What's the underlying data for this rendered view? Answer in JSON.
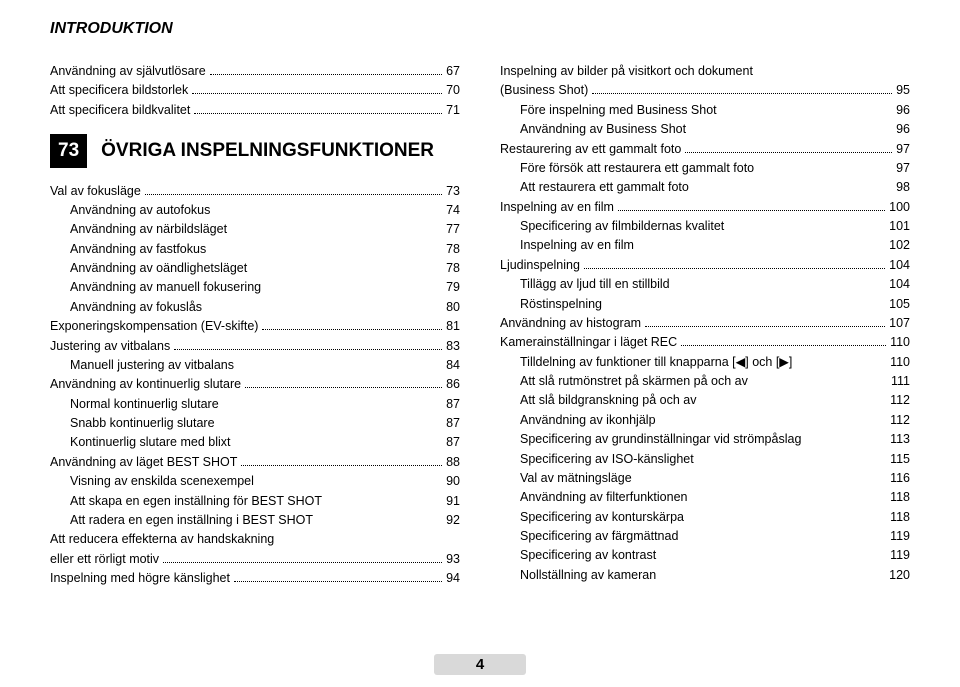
{
  "header": "INTRODUKTION",
  "page_number": "4",
  "colors": {
    "background": "#ffffff",
    "text": "#000000",
    "section_num_bg": "#000000",
    "section_num_fg": "#ffffff",
    "pagenum_bg": "#d9d9d9"
  },
  "left": [
    {
      "type": "main",
      "label": "Användning av självutlösare",
      "page": "67"
    },
    {
      "type": "main",
      "label": "Att specificera bildstorlek",
      "page": "70"
    },
    {
      "type": "main",
      "label": "Att specificera bildkvalitet",
      "page": "71"
    },
    {
      "type": "chapter",
      "num": "73",
      "title": "ÖVRIGA INSPELNINGSFUNKTIONER"
    },
    {
      "type": "main",
      "label": "Val av fokusläge",
      "page": "73"
    },
    {
      "type": "sub",
      "label": "Användning av autofokus",
      "page": "74"
    },
    {
      "type": "sub",
      "label": "Användning av närbildsläget",
      "page": "77"
    },
    {
      "type": "sub",
      "label": "Användning av fastfokus",
      "page": "78"
    },
    {
      "type": "sub",
      "label": "Användning av oändlighetsläget",
      "page": "78"
    },
    {
      "type": "sub",
      "label": "Användning av manuell fokusering",
      "page": "79"
    },
    {
      "type": "sub",
      "label": "Användning av fokuslås",
      "page": "80"
    },
    {
      "type": "main",
      "label": "Exponeringskompensation (EV-skifte)",
      "page": "81"
    },
    {
      "type": "main",
      "label": "Justering av vitbalans",
      "page": "83"
    },
    {
      "type": "sub",
      "label": "Manuell justering av vitbalans",
      "page": "84"
    },
    {
      "type": "main",
      "label": "Användning av kontinuerlig slutare",
      "page": "86"
    },
    {
      "type": "sub",
      "label": "Normal kontinuerlig slutare",
      "page": "87"
    },
    {
      "type": "sub",
      "label": "Snabb kontinuerlig slutare",
      "page": "87"
    },
    {
      "type": "sub",
      "label": "Kontinuerlig slutare med blixt",
      "page": "87"
    },
    {
      "type": "main",
      "label": "Användning av läget BEST SHOT",
      "page": "88"
    },
    {
      "type": "sub",
      "label": "Visning av enskilda scenexempel",
      "page": "90"
    },
    {
      "type": "sub",
      "label": "Att skapa en egen inställning för BEST SHOT",
      "page": "91"
    },
    {
      "type": "sub",
      "label": "Att radera en egen inställning i BEST SHOT",
      "page": "92"
    },
    {
      "type": "main-wrap",
      "label1": "Att reducera effekterna av handskakning",
      "label2": "eller ett rörligt motiv",
      "page": "93"
    },
    {
      "type": "main",
      "label": "Inspelning med högre känslighet",
      "page": "94"
    }
  ],
  "right": [
    {
      "type": "main-wrap",
      "label1": "Inspelning av bilder på visitkort och dokument",
      "label2": "(Business Shot)",
      "page": "95"
    },
    {
      "type": "sub",
      "label": "Före inspelning med Business Shot",
      "page": "96"
    },
    {
      "type": "sub",
      "label": "Användning av Business Shot",
      "page": "96"
    },
    {
      "type": "main",
      "label": "Restaurering av ett gammalt foto",
      "page": "97"
    },
    {
      "type": "sub",
      "label": "Före försök att restaurera ett gammalt foto",
      "page": "97"
    },
    {
      "type": "sub",
      "label": "Att restaurera ett gammalt foto",
      "page": "98"
    },
    {
      "type": "main",
      "label": "Inspelning av en film",
      "page": "100"
    },
    {
      "type": "sub",
      "label": "Specificering av filmbildernas kvalitet",
      "page": "101"
    },
    {
      "type": "sub",
      "label": "Inspelning av en film",
      "page": "102"
    },
    {
      "type": "main",
      "label": "Ljudinspelning",
      "page": "104"
    },
    {
      "type": "sub",
      "label": "Tillägg av ljud till en stillbild",
      "page": "104"
    },
    {
      "type": "sub",
      "label": "Röstinspelning",
      "page": "105"
    },
    {
      "type": "main",
      "label": "Användning av histogram",
      "page": "107"
    },
    {
      "type": "main",
      "label": "Kamerainställningar i läget REC",
      "page": "110"
    },
    {
      "type": "sub",
      "label": "Tilldelning av funktioner till knapparna [◀] och [▶]",
      "page": "110"
    },
    {
      "type": "sub",
      "label": "Att slå rutmönstret på skärmen på och av",
      "page": "111"
    },
    {
      "type": "sub",
      "label": "Att slå bildgranskning på och av",
      "page": "112"
    },
    {
      "type": "sub",
      "label": "Användning av ikonhjälp",
      "page": "112"
    },
    {
      "type": "sub",
      "label": "Specificering av grundinställningar vid strömpåslag",
      "page": "113"
    },
    {
      "type": "sub",
      "label": "Specificering av ISO-känslighet",
      "page": "115"
    },
    {
      "type": "sub",
      "label": "Val av mätningsläge",
      "page": "116"
    },
    {
      "type": "sub",
      "label": "Användning av filterfunktionen",
      "page": "118"
    },
    {
      "type": "sub",
      "label": "Specificering av konturskärpa",
      "page": "118"
    },
    {
      "type": "sub",
      "label": "Specificering av färgmättnad",
      "page": "119"
    },
    {
      "type": "sub",
      "label": "Specificering av kontrast",
      "page": "119"
    },
    {
      "type": "sub",
      "label": "Nollställning av kameran",
      "page": "120"
    }
  ]
}
